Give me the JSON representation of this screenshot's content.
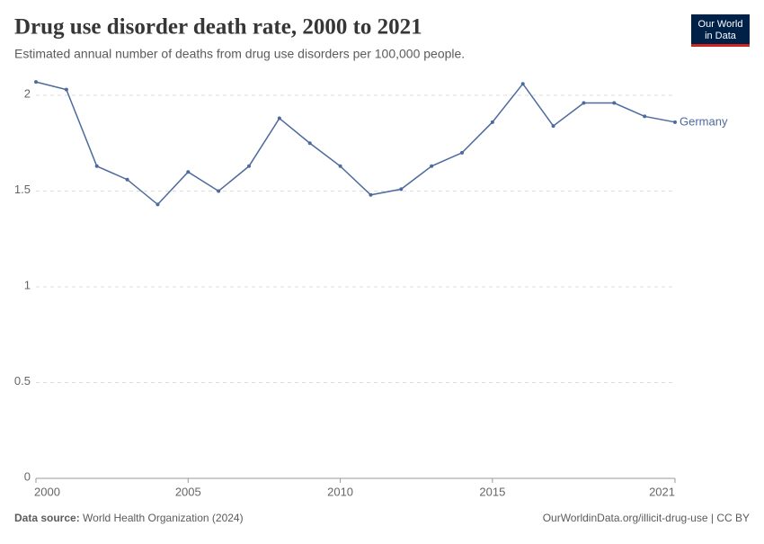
{
  "chart_data": {
    "type": "line",
    "title": "Drug use disorder death rate, 2000 to 2021",
    "subtitle": "Estimated annual number of deaths from drug use disorders per 100,000 people.",
    "x": [
      2000,
      2001,
      2002,
      2003,
      2004,
      2005,
      2006,
      2007,
      2008,
      2009,
      2010,
      2011,
      2012,
      2013,
      2014,
      2015,
      2016,
      2017,
      2018,
      2019,
      2020,
      2021
    ],
    "series": [
      {
        "name": "Germany",
        "color": "#4c6a9c",
        "values": [
          2.07,
          2.03,
          1.63,
          1.56,
          1.43,
          1.6,
          1.5,
          1.63,
          1.88,
          1.75,
          1.63,
          1.48,
          1.51,
          1.63,
          1.7,
          1.86,
          2.06,
          1.84,
          1.96,
          1.96,
          1.89,
          1.86
        ]
      }
    ],
    "xlim": [
      2000,
      2021
    ],
    "xticks": [
      2000,
      2005,
      2010,
      2015,
      2021
    ],
    "ylim": [
      0,
      2.1
    ],
    "yticks": [
      0,
      0.5,
      1,
      1.5,
      2
    ],
    "grid": true,
    "source_label": "Data source:",
    "source": "World Health Organization (2024)",
    "footer_right": "OurWorldinData.org/illicit-drug-use | CC BY",
    "logo": [
      "Our World",
      "in Data"
    ]
  }
}
